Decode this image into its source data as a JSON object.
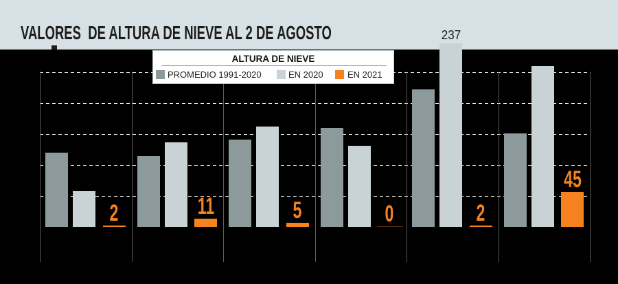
{
  "title": "VALORES  DE ALTURA DE NIEVE AL 2 DE AGOSTO",
  "legend": {
    "title": "ALTURA DE NIEVE",
    "items": [
      {
        "label": "PROMEDIO 1991-2020",
        "color": "#8d9a9b"
      },
      {
        "label": "EN 2020",
        "color": "#c9d2d4"
      },
      {
        "label": "EN 2021",
        "color": "#f5821e"
      }
    ]
  },
  "chart_data": {
    "type": "bar",
    "title": "VALORES  DE ALTURA DE NIEVE AL 2 DE AGOSTO",
    "legend_title": "ALTURA DE NIEVE",
    "n_groups": 6,
    "category_labels_visible": false,
    "series": [
      {
        "name": "PROMEDIO 1991-2020",
        "color": "#8d9a9b",
        "estimated": true,
        "values": [
          96,
          92,
          113,
          128,
          178,
          121
        ]
      },
      {
        "name": "EN 2020",
        "color": "#c9d2d4",
        "estimated": true,
        "values": [
          46,
          109,
          130,
          105,
          237,
          208
        ],
        "labeled_values": {
          "4": "237"
        }
      },
      {
        "name": "EN 2021",
        "color": "#f5821e",
        "all_values_labeled": true,
        "values": [
          2,
          11,
          5,
          0,
          2,
          45
        ]
      }
    ],
    "ylim": [
      0,
      240
    ],
    "gridlines": {
      "values": [
        40,
        80,
        120,
        160,
        200
      ],
      "labeled": false,
      "style": "dashed"
    },
    "legend_position": "top"
  },
  "colors": {
    "band": "#d7e1e5",
    "chart_bg": "#000000",
    "grid": "#e9eced",
    "separator": "#5c5c5c",
    "orange": "#f5821e",
    "zero_line": "#5f2e0d",
    "title_text": "#1d1d1b",
    "annotation_text": "#1d1d1b"
  }
}
